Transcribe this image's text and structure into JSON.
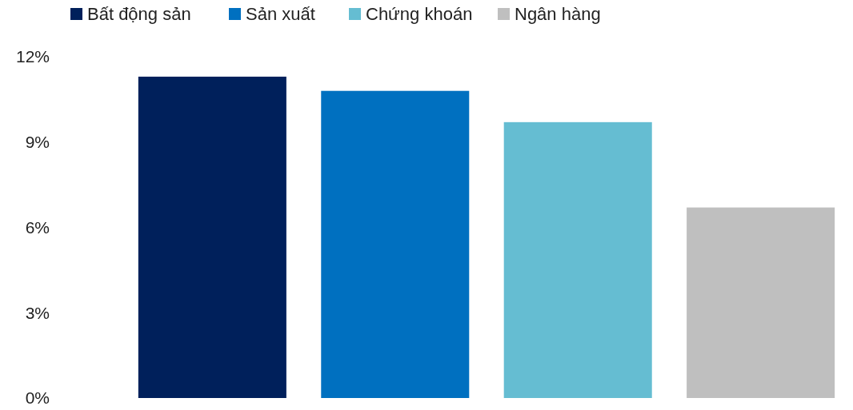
{
  "chart_data": {
    "type": "bar",
    "categories": [
      null,
      null,
      null,
      null
    ],
    "series": [
      {
        "name": "Bất động sản",
        "color": "#00205b",
        "values": [
          11.3,
          null,
          null,
          null
        ]
      },
      {
        "name": "Sản xuất",
        "color": "#0070c0",
        "values": [
          null,
          10.8,
          null,
          null
        ]
      },
      {
        "name": "Chứng khoán",
        "color": "#65bdd2",
        "values": [
          null,
          null,
          9.7,
          null
        ]
      },
      {
        "name": "Ngân hàng",
        "color": "#bfbfbf",
        "values": [
          null,
          null,
          null,
          6.7
        ]
      }
    ],
    "ylim": [
      0,
      12
    ],
    "yticks": [
      {
        "value": 0,
        "label": "0%"
      },
      {
        "value": 3,
        "label": "3%"
      },
      {
        "value": 6,
        "label": "6%"
      },
      {
        "value": 9,
        "label": "9%"
      },
      {
        "value": 12,
        "label": "12%"
      }
    ],
    "stacked": true,
    "grid": false,
    "legend": "top left"
  }
}
